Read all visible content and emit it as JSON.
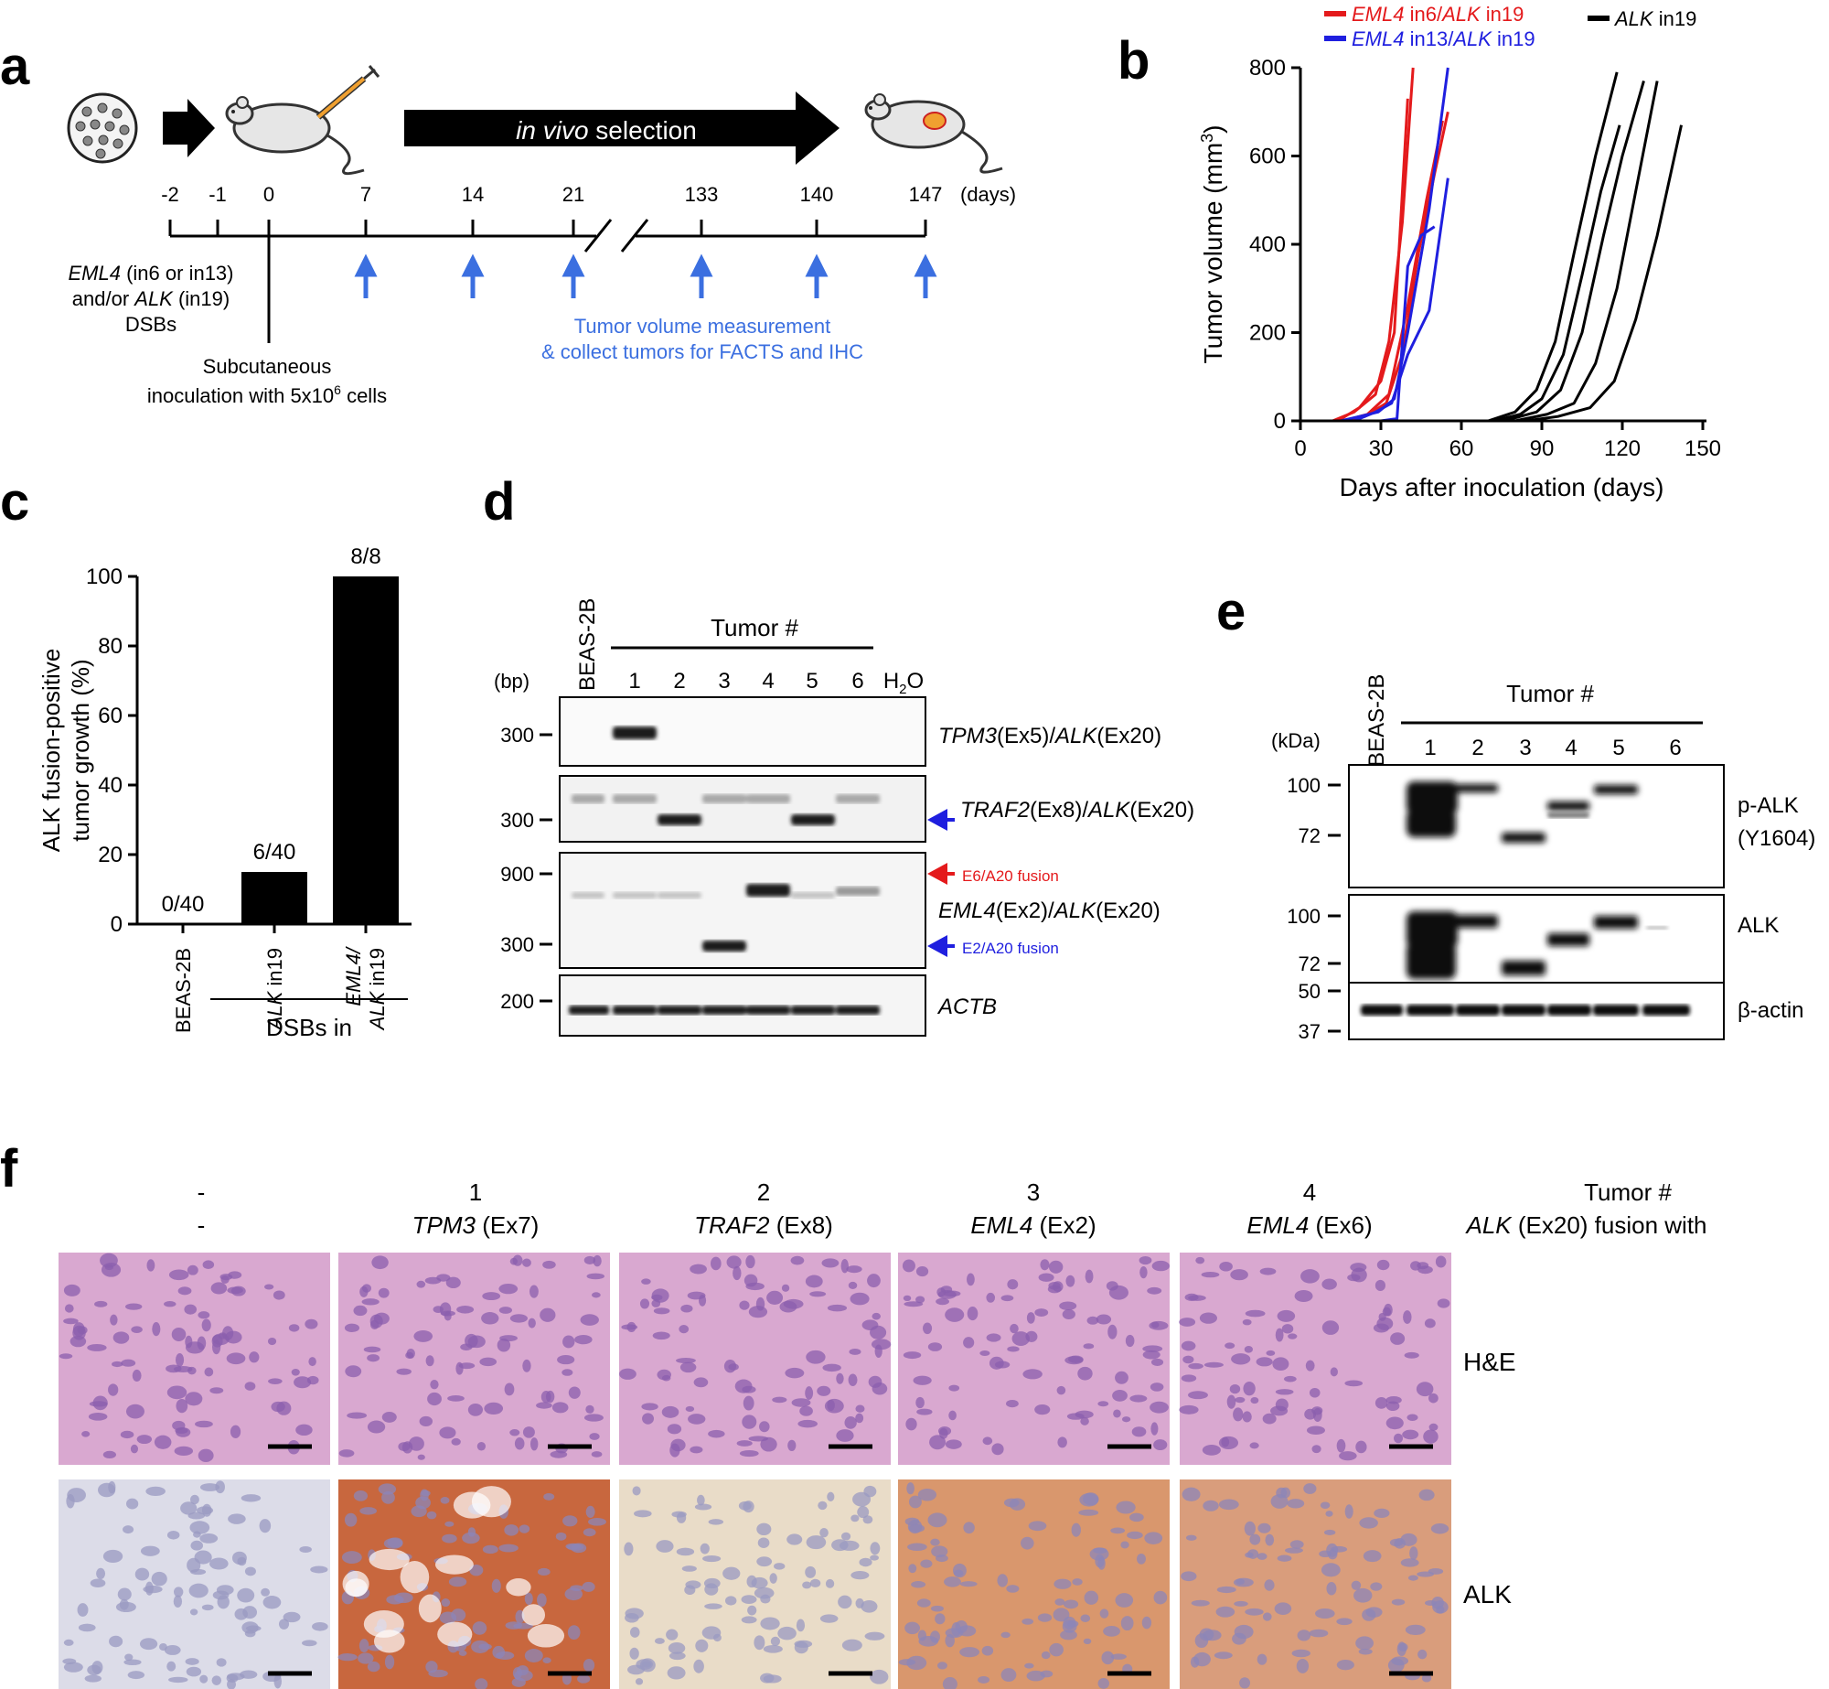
{
  "panels": {
    "a": {
      "label": "a",
      "selection_pre": "in vivo",
      "selection_post": " selection",
      "timeline_ticks": [
        "-2",
        "-1",
        "0",
        "7",
        "14",
        "21",
        "133",
        "140",
        "147"
      ],
      "days_label": "(days)",
      "dsb_line1_gene": "EML4",
      "dsb_line1_rest": " (in6 or in13)",
      "dsb_line2_pre": "and/or ",
      "dsb_line2_gene": "ALK",
      "dsb_line2_rest": " (in19)",
      "dsb_line3": "DSBs",
      "inoc_line1": "Subcutaneous",
      "inoc_line2_pre": "inoculation with 5x10",
      "inoc_line2_sup": "6",
      "inoc_line2_post": " cells",
      "measure_line1": "Tumor volume measurement",
      "measure_line2": "& collect tumors for FACTS and IHC",
      "accent_color": "#3b6fe0"
    },
    "b": {
      "label": "b",
      "legend": [
        {
          "gene1": "EML4",
          "mid": " in6/",
          "gene2": "ALK",
          "post": " in19",
          "color": "#e41a1c"
        },
        {
          "gene1": "EML4",
          "mid": " in13/",
          "gene2": "ALK",
          "post": " in19",
          "color": "#1f1fdf"
        },
        {
          "gene1": "ALK",
          "mid": " in19",
          "gene2": "",
          "post": "",
          "color": "#000000"
        }
      ]
    },
    "c": {
      "label": "c",
      "group_label": "DSBs in"
    },
    "d": {
      "label": "d",
      "bp_label": "(bp)",
      "control_label": "BEAS-2B",
      "tumor_header": "Tumor #",
      "lanes": [
        "1",
        "2",
        "3",
        "4",
        "5",
        "6"
      ],
      "water_label": "H",
      "water_sub": "2",
      "water_post": "O",
      "gels": [
        {
          "markers": [
            "300"
          ],
          "gene1": "TPM3",
          "ex1": "(Ex5)/",
          "gene2": "ALK",
          "ex2": "(Ex20)"
        },
        {
          "markers": [
            "300"
          ],
          "gene1": "TRAF2",
          "ex1": "(Ex8)/",
          "gene2": "ALK",
          "ex2": "(Ex20)"
        },
        {
          "markers": [
            "900",
            "300"
          ],
          "gene1": "EML4",
          "ex1": "(Ex2)/",
          "gene2": "ALK",
          "ex2": "(Ex20)"
        },
        {
          "markers": [
            "200"
          ],
          "gene1": "ACTB",
          "ex1": "",
          "gene2": "",
          "ex2": ""
        }
      ],
      "fusion_e6": "E6/A20 fusion",
      "fusion_e2": "E2/A20 fusion",
      "e6_color": "#e41a1c",
      "e2_color": "#1f1fdf"
    },
    "e": {
      "label": "e",
      "kda_label": "(kDa)",
      "control_label": "BEAS-2B",
      "tumor_header": "Tumor #",
      "lanes": [
        "1",
        "2",
        "3",
        "4",
        "5",
        "6"
      ],
      "blots": [
        {
          "markers": [
            "100",
            "72"
          ],
          "name1": "p-ALK",
          "name2": "(Y1604)"
        },
        {
          "markers": [
            "100",
            "72"
          ],
          "name1": "ALK",
          "name2": ""
        },
        {
          "markers": [
            "50",
            "37"
          ],
          "name1": "β-actin",
          "name2": ""
        }
      ]
    },
    "f": {
      "label": "f",
      "row1_label": "Tumor #",
      "row2_gene": "ALK",
      "row2_rest": " (Ex20) fusion with",
      "columns": [
        {
          "num": "-",
          "gene": "-",
          "exon": ""
        },
        {
          "num": "1",
          "gene": "TPM3",
          "exon": " (Ex7)"
        },
        {
          "num": "2",
          "gene": "TRAF2",
          "exon": " (Ex8)"
        },
        {
          "num": "3",
          "gene": "EML4",
          "exon": " (Ex2)"
        },
        {
          "num": "4",
          "gene": "EML4",
          "exon": " (Ex6)"
        }
      ],
      "rows": [
        "H&E",
        "ALK"
      ],
      "he_color": "#d9a8d0",
      "ihc_colors": [
        "#dcdce8",
        "#c8673e",
        "#e9dcc8",
        "#d9976d",
        "#d99d7c"
      ]
    }
  },
  "chart_data": [
    {
      "type": "line",
      "title": "",
      "xlabel": "Days after inoculation (days)",
      "ylabel_pre": "Tumor volume (mm",
      "ylabel_sup": "3",
      "ylabel_post": ")",
      "xlim": [
        0,
        150
      ],
      "ylim": [
        0,
        800
      ],
      "xticks": [
        0,
        30,
        60,
        90,
        120,
        150
      ],
      "yticks": [
        0,
        200,
        400,
        600,
        800
      ],
      "series": [
        {
          "group": 0,
          "x": [
            0,
            12,
            20,
            28,
            33,
            38,
            42
          ],
          "y": [
            0,
            0,
            20,
            60,
            180,
            450,
            800
          ]
        },
        {
          "group": 0,
          "x": [
            0,
            14,
            22,
            30,
            35,
            40
          ],
          "y": [
            0,
            0,
            30,
            90,
            200,
            730
          ]
        },
        {
          "group": 0,
          "x": [
            0,
            15,
            24,
            32,
            38,
            44,
            50,
            55
          ],
          "y": [
            0,
            0,
            10,
            40,
            150,
            380,
            560,
            700
          ]
        },
        {
          "group": 0,
          "x": [
            0,
            16,
            25,
            33,
            40,
            47,
            53
          ],
          "y": [
            0,
            0,
            15,
            60,
            260,
            500,
            680
          ]
        },
        {
          "group": 1,
          "x": [
            0,
            15,
            22,
            29,
            35,
            40,
            48,
            55
          ],
          "y": [
            0,
            0,
            10,
            20,
            50,
            200,
            480,
            800
          ]
        },
        {
          "group": 1,
          "x": [
            0,
            20,
            28,
            34,
            40,
            48,
            55
          ],
          "y": [
            0,
            0,
            20,
            40,
            150,
            250,
            550
          ]
        },
        {
          "group": 1,
          "x": [
            0,
            30,
            36,
            40,
            45,
            50
          ],
          "y": [
            0,
            0,
            5,
            350,
            420,
            440
          ]
        },
        {
          "group": 2,
          "x": [
            0,
            70,
            80,
            88,
            95,
            102,
            110,
            118
          ],
          "y": [
            0,
            0,
            20,
            70,
            180,
            380,
            600,
            790
          ]
        },
        {
          "group": 2,
          "x": [
            0,
            72,
            82,
            90,
            98,
            105,
            112,
            119
          ],
          "y": [
            0,
            0,
            15,
            50,
            150,
            330,
            520,
            670
          ]
        },
        {
          "group": 2,
          "x": [
            0,
            76,
            88,
            97,
            105,
            113,
            120,
            128
          ],
          "y": [
            0,
            0,
            20,
            70,
            200,
            420,
            600,
            770
          ]
        },
        {
          "group": 2,
          "x": [
            0,
            80,
            92,
            102,
            110,
            118,
            125,
            133
          ],
          "y": [
            0,
            0,
            15,
            40,
            130,
            300,
            520,
            770
          ]
        },
        {
          "group": 2,
          "x": [
            0,
            84,
            96,
            108,
            117,
            125,
            133,
            142
          ],
          "y": [
            0,
            0,
            10,
            30,
            90,
            230,
            420,
            670
          ]
        }
      ]
    },
    {
      "type": "bar",
      "title": "",
      "ylabel_line1": "ALK fusion-positive",
      "ylabel_line2": "tumor growth (%)",
      "ylim": [
        0,
        100
      ],
      "yticks": [
        0,
        20,
        40,
        60,
        80,
        100
      ],
      "categories": [
        {
          "gene1": "BEAS-2B",
          "gene1_italic": false,
          "rest1": "",
          "gene2": "",
          "rest2": ""
        },
        {
          "gene1": "ALK",
          "gene1_italic": true,
          "rest1": " in19",
          "gene2": "",
          "rest2": ""
        },
        {
          "gene1": "EML4/",
          "gene1_italic": true,
          "rest1": "",
          "gene2": "ALK",
          "rest2": " in19"
        }
      ],
      "values": [
        0,
        15,
        100
      ],
      "value_labels": [
        "0/40",
        "6/40",
        "8/8"
      ]
    }
  ]
}
